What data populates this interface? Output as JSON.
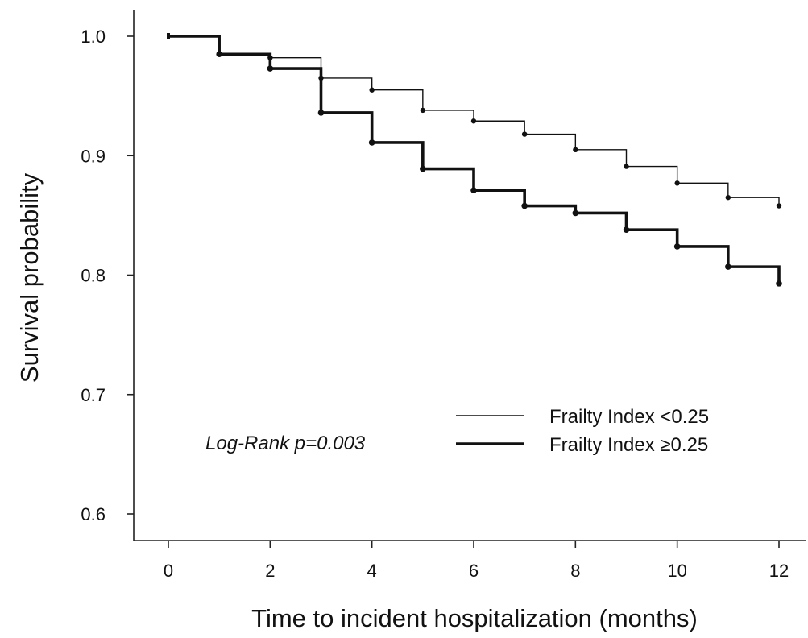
{
  "chart_data": {
    "type": "line",
    "step": true,
    "title": "",
    "xlabel": "Time to incident hospitalization (months)",
    "ylabel": "Survival probability",
    "xlim": [
      0,
      12
    ],
    "ylim": [
      0.6,
      1.0
    ],
    "xticks": [
      0,
      2,
      4,
      6,
      8,
      10,
      12
    ],
    "xtick_labels": [
      "0",
      "2",
      "4",
      "6",
      "8",
      "10",
      "12"
    ],
    "yticks": [
      0.6,
      0.7,
      0.8,
      0.9,
      1.0
    ],
    "ytick_labels": [
      "0.6",
      "0.7",
      "0.8",
      "0.9",
      "1.0"
    ],
    "grid": false,
    "legend_position": "bottom-right",
    "annotation": "Log-Rank p=0.003",
    "series": [
      {
        "name": "Frailty Index <0.25",
        "line_weight": "thin",
        "x": [
          0,
          1,
          2,
          3,
          4,
          5,
          6,
          7,
          8,
          9,
          10,
          11,
          12
        ],
        "y": [
          1.0,
          0.985,
          0.982,
          0.965,
          0.955,
          0.938,
          0.929,
          0.918,
          0.905,
          0.891,
          0.877,
          0.865,
          0.858
        ]
      },
      {
        "name": "Frailty Index ≥0.25",
        "line_weight": "thick",
        "x": [
          0,
          1,
          2,
          3,
          4,
          5,
          6,
          7,
          8,
          9,
          10,
          11,
          12
        ],
        "y": [
          1.0,
          0.985,
          0.973,
          0.936,
          0.911,
          0.889,
          0.871,
          0.858,
          0.852,
          0.838,
          0.824,
          0.807,
          0.793
        ]
      }
    ]
  }
}
